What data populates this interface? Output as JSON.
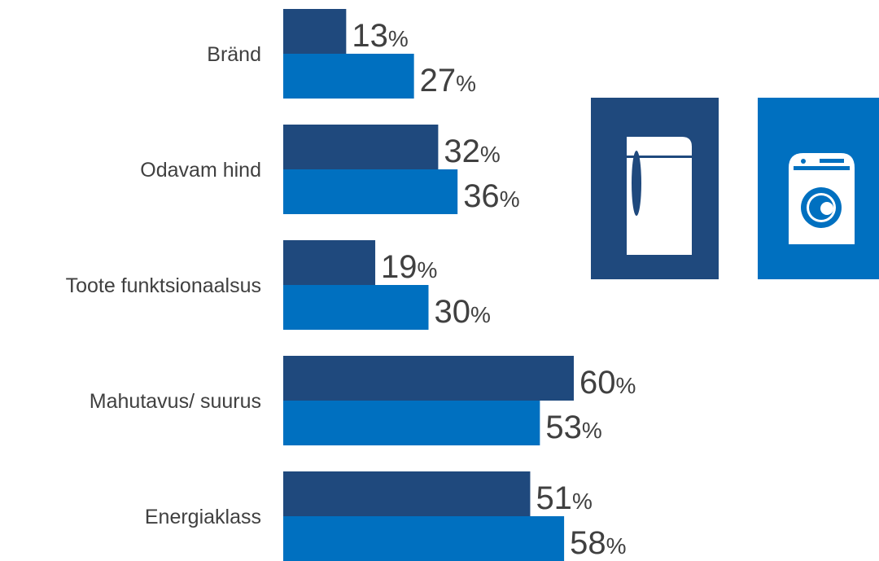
{
  "colors": {
    "series_dark": "#1f497d",
    "series_light": "#0070c0",
    "text": "#404040"
  },
  "legend_icons": [
    {
      "icon": "refrigerator-icon",
      "color": "#1f497d"
    },
    {
      "icon": "washing-machine-icon",
      "color": "#0070c0"
    }
  ],
  "chart_data": {
    "type": "bar",
    "orientation": "horizontal",
    "categories": [
      "Bränd",
      "Odavam hind",
      "Toote funktsionaalsus",
      "Mahutavus/ suurus",
      "Energiaklass"
    ],
    "series": [
      {
        "values": [
          13,
          32,
          19,
          60,
          51
        ],
        "color": "#1f497d",
        "icon": "refrigerator-icon"
      },
      {
        "values": [
          27,
          36,
          30,
          53,
          58
        ],
        "color": "#0070c0",
        "icon": "washing-machine-icon"
      }
    ],
    "value_suffix": "%",
    "xlim": [
      0,
      100
    ],
    "grid": false,
    "legend": "right"
  }
}
